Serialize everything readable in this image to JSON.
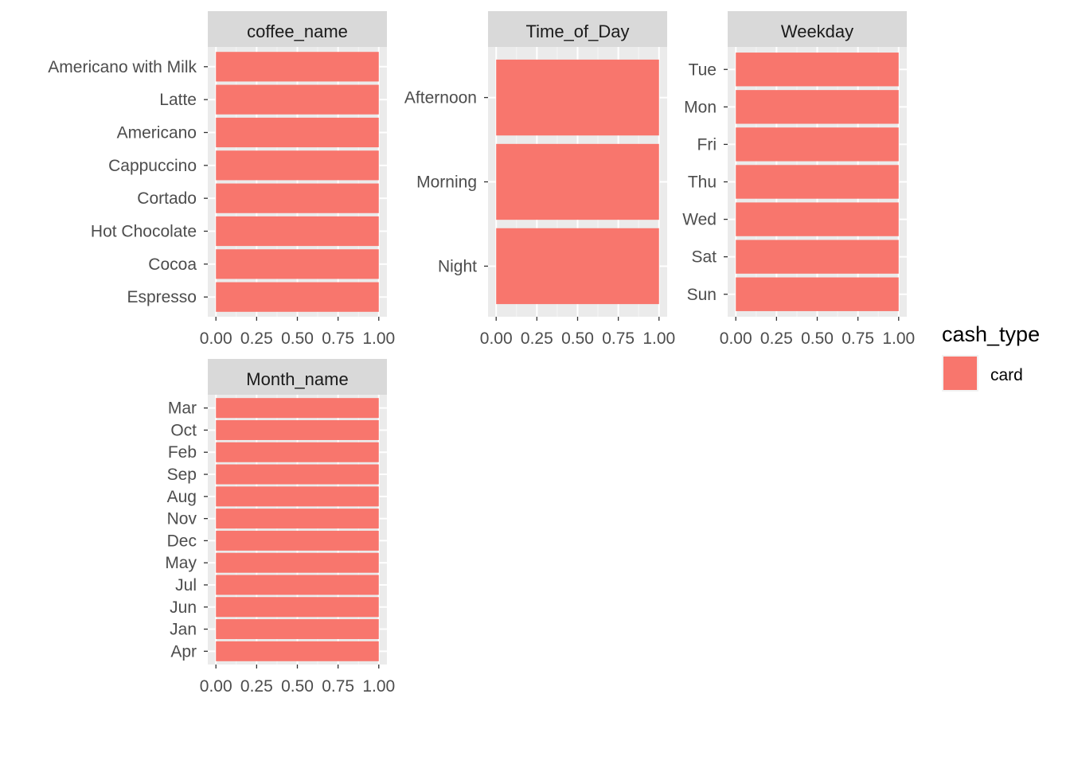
{
  "colors": {
    "bar": "#F8766D",
    "panel": "#EBEBEB",
    "strip": "#D9D9D9",
    "grid_major": "#FFFFFF",
    "grid_minor": "#F5F5F5",
    "tick": "#333333"
  },
  "legend": {
    "title": "cash_type",
    "items": [
      {
        "label": "card",
        "color": "#F8766D"
      }
    ]
  },
  "chart_data": [
    {
      "type": "bar",
      "orientation": "horizontal",
      "facet": "coffee_name",
      "categories": [
        "Americano with Milk",
        "Latte",
        "Americano",
        "Cappuccino",
        "Cortado",
        "Hot Chocolate",
        "Cocoa",
        "Espresso"
      ],
      "values": [
        1,
        1,
        1,
        1,
        1,
        1,
        1,
        1
      ],
      "xlim": [
        0,
        1
      ],
      "xticks": [
        "0.00",
        "0.25",
        "0.50",
        "0.75",
        "1.00"
      ]
    },
    {
      "type": "bar",
      "orientation": "horizontal",
      "facet": "Time_of_Day",
      "categories": [
        "Afternoon",
        "Morning",
        "Night"
      ],
      "values": [
        1,
        1,
        1
      ],
      "xlim": [
        0,
        1
      ],
      "xticks": [
        "0.00",
        "0.25",
        "0.50",
        "0.75",
        "1.00"
      ]
    },
    {
      "type": "bar",
      "orientation": "horizontal",
      "facet": "Weekday",
      "categories": [
        "Tue",
        "Mon",
        "Fri",
        "Thu",
        "Wed",
        "Sat",
        "Sun"
      ],
      "values": [
        1,
        1,
        1,
        1,
        1,
        1,
        1
      ],
      "xlim": [
        0,
        1
      ],
      "xticks": [
        "0.00",
        "0.25",
        "0.50",
        "0.75",
        "1.00"
      ]
    },
    {
      "type": "bar",
      "orientation": "horizontal",
      "facet": "Month_name",
      "categories": [
        "Mar",
        "Oct",
        "Feb",
        "Sep",
        "Aug",
        "Nov",
        "Dec",
        "May",
        "Jul",
        "Jun",
        "Jan",
        "Apr"
      ],
      "values": [
        1,
        1,
        1,
        1,
        1,
        1,
        1,
        1,
        1,
        1,
        1,
        1
      ],
      "xlim": [
        0,
        1
      ],
      "xticks": [
        "0.00",
        "0.25",
        "0.50",
        "0.75",
        "1.00"
      ]
    }
  ]
}
